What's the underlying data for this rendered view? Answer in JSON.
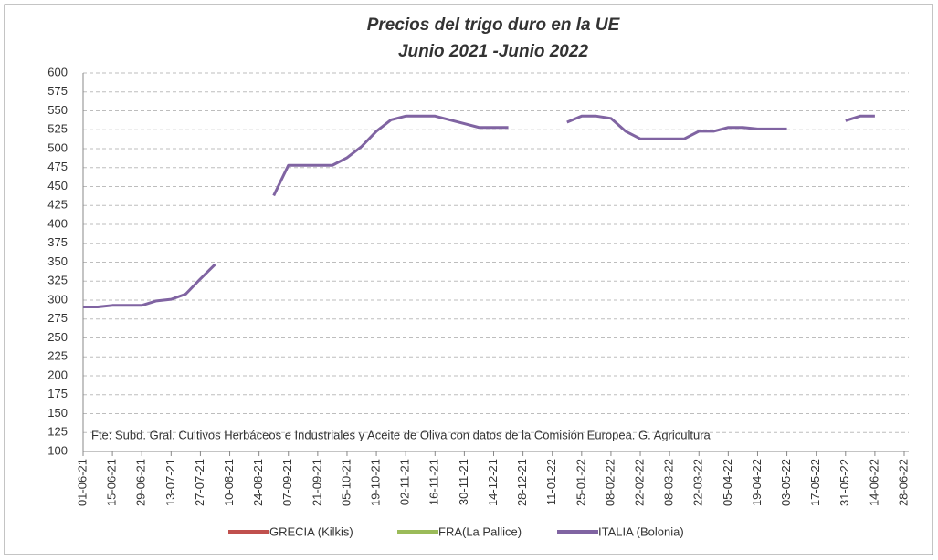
{
  "chart_data": {
    "type": "line",
    "title": "Precios del trigo duro en la UE",
    "subtitle": "Junio 2021 -Junio 2022",
    "annotation": "Fte: Subd. Gral. Cultivos Herbáceos e Industriales y Aceite de Oliva con datos de la Comisión Europea. G. Agricultura",
    "categories": [
      "01-06-21",
      null,
      "15-06-21",
      null,
      "29-06-21",
      null,
      "13-07-21",
      null,
      "27-07-21",
      null,
      "10-08-21",
      null,
      "24-08-21",
      null,
      "07-09-21",
      null,
      "21-09-21",
      null,
      "05-10-21",
      null,
      "19-10-21",
      null,
      "02-11-21",
      null,
      "16-11-21",
      null,
      "30-11-21",
      null,
      "14-12-21",
      null,
      "28-12-21",
      null,
      "11-01-22",
      null,
      "25-01-22",
      null,
      "08-02-22",
      null,
      "22-02-22",
      null,
      "08-03-22",
      null,
      "22-03-22",
      null,
      "05-04-22",
      null,
      "19-04-22",
      null,
      "03-05-22",
      null,
      "17-05-22",
      null,
      "31-05-22",
      null,
      "14-06-22",
      null,
      "28-06-22"
    ],
    "series": [
      {
        "name": "GRECIA (Kilkis)",
        "color": "#c0504d",
        "values": [
          null,
          null,
          null,
          null,
          null,
          null,
          null,
          null,
          null,
          null,
          null,
          null,
          null,
          null,
          null,
          null,
          null,
          null,
          null,
          null,
          null,
          null,
          null,
          null,
          null,
          null,
          null,
          null,
          null,
          null,
          null,
          null,
          null,
          null,
          null,
          null,
          null,
          null,
          null,
          null,
          null,
          null,
          null,
          null,
          null,
          null,
          null,
          null,
          null,
          null,
          null,
          null,
          null,
          null,
          null,
          null,
          null
        ]
      },
      {
        "name": "FRA(La Pallice)",
        "color": "#9bbb59",
        "values": [
          null,
          null,
          null,
          null,
          null,
          null,
          null,
          null,
          null,
          null,
          null,
          null,
          null,
          null,
          null,
          null,
          null,
          null,
          null,
          null,
          null,
          null,
          null,
          null,
          null,
          null,
          null,
          null,
          null,
          null,
          null,
          null,
          null,
          null,
          null,
          null,
          null,
          null,
          null,
          null,
          null,
          null,
          null,
          null,
          null,
          null,
          null,
          null,
          null,
          null,
          null,
          null,
          null,
          null,
          null,
          null,
          null
        ]
      },
      {
        "name": "ITALIA (Bolonia)",
        "color": "#8064a2",
        "values": [
          291,
          291,
          293,
          293,
          293,
          299,
          301,
          308,
          328,
          347,
          null,
          null,
          null,
          438,
          478,
          478,
          478,
          478,
          488,
          503,
          523,
          538,
          543,
          543,
          543,
          538,
          533,
          528,
          528,
          528,
          null,
          null,
          null,
          535,
          543,
          543,
          540,
          523,
          513,
          513,
          513,
          513,
          523,
          523,
          528,
          528,
          526,
          526,
          526,
          null,
          null,
          null,
          537,
          543,
          543,
          null,
          null
        ]
      }
    ],
    "ylim": [
      100,
      600
    ],
    "yticks": [
      100,
      125,
      150,
      175,
      200,
      225,
      250,
      275,
      300,
      325,
      350,
      375,
      400,
      425,
      450,
      475,
      500,
      525,
      550,
      575,
      600
    ],
    "grid": true
  }
}
